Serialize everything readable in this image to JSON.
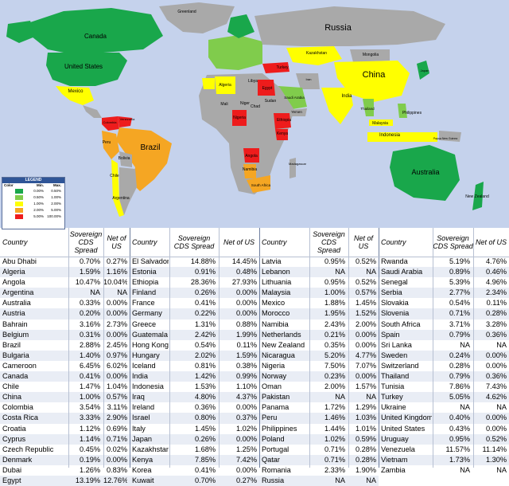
{
  "map": {
    "labels": [
      {
        "text": "Greenland"
      },
      {
        "text": "Canada"
      },
      {
        "text": "United States"
      },
      {
        "text": "Mexico"
      },
      {
        "text": "Brazil"
      },
      {
        "text": "Peru"
      },
      {
        "text": "Bolivia"
      },
      {
        "text": "Chile"
      },
      {
        "text": "Argentina"
      },
      {
        "text": "Russia"
      },
      {
        "text": "Kazakhstan"
      },
      {
        "text": "Mongolia"
      },
      {
        "text": "China"
      },
      {
        "text": "India"
      },
      {
        "text": "Japan"
      },
      {
        "text": "Iran"
      },
      {
        "text": "Turkey"
      },
      {
        "text": "Algeria"
      },
      {
        "text": "Libya"
      },
      {
        "text": "Egypt"
      },
      {
        "text": "Mali"
      },
      {
        "text": "Niger"
      },
      {
        "text": "Chad"
      },
      {
        "text": "Sudan"
      },
      {
        "text": "Nigeria"
      },
      {
        "text": "Ethiopia"
      },
      {
        "text": "Kenya"
      },
      {
        "text": "Angola"
      },
      {
        "text": "Namibia"
      },
      {
        "text": "Madagascar"
      },
      {
        "text": "South Africa"
      },
      {
        "text": "Saudi Arabia"
      },
      {
        "text": "Yemen"
      },
      {
        "text": "Thailand"
      },
      {
        "text": "Philippines"
      },
      {
        "text": "Malaysia"
      },
      {
        "text": "Indonesia"
      },
      {
        "text": "Papua New Guinea"
      },
      {
        "text": "Australia"
      },
      {
        "text": "New Zealand"
      },
      {
        "text": "Colombia"
      },
      {
        "text": "Venezuela"
      }
    ],
    "colors": {
      "ocean": "#c5d2ec",
      "land": "#a9a9a9",
      "green_dark": "#19a74b",
      "green_light": "#80cc4c",
      "yellow": "#ffff00",
      "orange": "#f5a623",
      "red": "#ee1c1c"
    }
  },
  "legend": {
    "title": "LEGEND",
    "h_color": "Color",
    "h_min": "Min.",
    "h_max": "Max.",
    "rows": [
      {
        "min": "0.00%",
        "max": "0.50%",
        "color": "#19a74b"
      },
      {
        "min": "0.50%",
        "max": "1.00%",
        "color": "#80cc4c"
      },
      {
        "min": "1.00%",
        "max": "2.00%",
        "color": "#ffff00"
      },
      {
        "min": "2.00%",
        "max": "5.00%",
        "color": "#f5a623"
      },
      {
        "min": "5.00%",
        "max": "100.00%",
        "color": "#ee1c1c"
      }
    ]
  },
  "table": {
    "headers": {
      "country": "Country",
      "spread": "Sovereign CDS Spread",
      "net": "Net of US"
    },
    "blocks": [
      [
        [
          "Abu Dhabi",
          "0.70%",
          "0.27%"
        ],
        [
          "Algeria",
          "1.59%",
          "1.16%"
        ],
        [
          "Angola",
          "10.47%",
          "10.04%"
        ],
        [
          "Argentina",
          "NA",
          "NA"
        ],
        [
          "Australia",
          "0.33%",
          "0.00%"
        ],
        [
          "Austria",
          "0.20%",
          "0.00%"
        ],
        [
          "Bahrain",
          "3.16%",
          "2.73%"
        ],
        [
          "Belgium",
          "0.31%",
          "0.00%"
        ],
        [
          "Brazil",
          "2.88%",
          "2.45%"
        ],
        [
          "Bulgaria",
          "1.40%",
          "0.97%"
        ],
        [
          "Cameroon",
          "6.45%",
          "6.02%"
        ],
        [
          "Canada",
          "0.41%",
          "0.00%"
        ],
        [
          "Chile",
          "1.47%",
          "1.04%"
        ],
        [
          "China",
          "1.00%",
          "0.57%"
        ],
        [
          "Colombia",
          "3.54%",
          "3.11%"
        ],
        [
          "Costa Rica",
          "3.33%",
          "2.90%"
        ],
        [
          "Croatia",
          "1.12%",
          "0.69%"
        ],
        [
          "Cyprus",
          "1.14%",
          "0.71%"
        ],
        [
          "Czech Republic",
          "0.45%",
          "0.02%"
        ],
        [
          "Denmark",
          "0.19%",
          "0.00%"
        ],
        [
          "Dubai",
          "1.26%",
          "0.83%"
        ],
        [
          "Egypt",
          "13.19%",
          "12.76%"
        ]
      ],
      [
        [
          "El Salvador",
          "14.88%",
          "14.45%"
        ],
        [
          "Estonia",
          "0.91%",
          "0.48%"
        ],
        [
          "Ethiopia",
          "28.36%",
          "27.93%"
        ],
        [
          "Finland",
          "0.26%",
          "0.00%"
        ],
        [
          "France",
          "0.41%",
          "0.00%"
        ],
        [
          "Germany",
          "0.22%",
          "0.00%"
        ],
        [
          "Greece",
          "1.31%",
          "0.88%"
        ],
        [
          "Guatemala",
          "2.42%",
          "1.99%"
        ],
        [
          "Hong Kong",
          "0.54%",
          "0.11%"
        ],
        [
          "Hungary",
          "2.02%",
          "1.59%"
        ],
        [
          "Iceland",
          "0.81%",
          "0.38%"
        ],
        [
          "India",
          "1.42%",
          "0.99%"
        ],
        [
          "Indonesia",
          "1.53%",
          "1.10%"
        ],
        [
          "Iraq",
          "4.80%",
          "4.37%"
        ],
        [
          "Ireland",
          "0.36%",
          "0.00%"
        ],
        [
          "Israel",
          "0.80%",
          "0.37%"
        ],
        [
          "Italy",
          "1.45%",
          "1.02%"
        ],
        [
          "Japan",
          "0.26%",
          "0.00%"
        ],
        [
          "Kazakhstan",
          "1.68%",
          "1.25%"
        ],
        [
          "Kenya",
          "7.85%",
          "7.42%"
        ],
        [
          "Korea",
          "0.41%",
          "0.00%"
        ],
        [
          "Kuwait",
          "0.70%",
          "0.27%"
        ]
      ],
      [
        [
          "Latvia",
          "0.95%",
          "0.52%"
        ],
        [
          "Lebanon",
          "NA",
          "NA"
        ],
        [
          "Lithuania",
          "0.95%",
          "0.52%"
        ],
        [
          "Malaysia",
          "1.00%",
          "0.57%"
        ],
        [
          "Mexico",
          "1.88%",
          "1.45%"
        ],
        [
          "Morocco",
          "1.95%",
          "1.52%"
        ],
        [
          "Namibia",
          "2.43%",
          "2.00%"
        ],
        [
          "Netherlands",
          "0.21%",
          "0.00%"
        ],
        [
          "New Zealand",
          "0.35%",
          "0.00%"
        ],
        [
          "Nicaragua",
          "5.20%",
          "4.77%"
        ],
        [
          "Nigeria",
          "7.50%",
          "7.07%"
        ],
        [
          "Norway",
          "0.23%",
          "0.00%"
        ],
        [
          "Oman",
          "2.00%",
          "1.57%"
        ],
        [
          "Pakistan",
          "NA",
          "NA"
        ],
        [
          "Panama",
          "1.72%",
          "1.29%"
        ],
        [
          "Peru",
          "1.46%",
          "1.03%"
        ],
        [
          "Philippines",
          "1.44%",
          "1.01%"
        ],
        [
          "Poland",
          "1.02%",
          "0.59%"
        ],
        [
          "Portugal",
          "0.71%",
          "0.28%"
        ],
        [
          "Qatar",
          "0.71%",
          "0.28%"
        ],
        [
          "Romania",
          "2.33%",
          "1.90%"
        ],
        [
          "Russia",
          "NA",
          "NA"
        ]
      ],
      [
        [
          "Rwanda",
          "5.19%",
          "4.76%"
        ],
        [
          "Saudi Arabia",
          "0.89%",
          "0.46%"
        ],
        [
          "Senegal",
          "5.39%",
          "4.96%"
        ],
        [
          "Serbia",
          "2.77%",
          "2.34%"
        ],
        [
          "Slovakia",
          "0.54%",
          "0.11%"
        ],
        [
          "Slovenia",
          "0.71%",
          "0.28%"
        ],
        [
          "South Africa",
          "3.71%",
          "3.28%"
        ],
        [
          "Spain",
          "0.79%",
          "0.36%"
        ],
        [
          "Sri Lanka",
          "NA",
          "NA"
        ],
        [
          "Sweden",
          "0.24%",
          "0.00%"
        ],
        [
          "Switzerland",
          "0.28%",
          "0.00%"
        ],
        [
          "Thailand",
          "0.79%",
          "0.36%"
        ],
        [
          "Tunisia",
          "7.86%",
          "7.43%"
        ],
        [
          "Turkey",
          "5.05%",
          "4.62%"
        ],
        [
          "Ukraine",
          "NA",
          "NA"
        ],
        [
          "United Kingdom",
          "0.40%",
          "0.00%"
        ],
        [
          "United States",
          "0.43%",
          "0.00%"
        ],
        [
          "Uruguay",
          "0.95%",
          "0.52%"
        ],
        [
          "Venezuela",
          "11.57%",
          "11.14%"
        ],
        [
          "Vietnam",
          "1.73%",
          "1.30%"
        ],
        [
          "Zambia",
          "NA",
          "NA"
        ]
      ]
    ]
  }
}
